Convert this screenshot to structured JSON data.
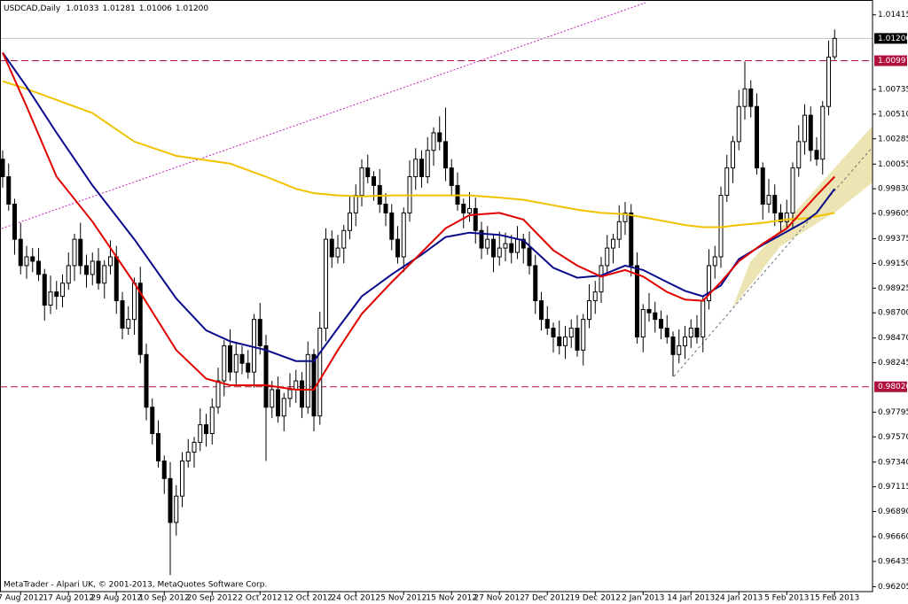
{
  "chart_data": {
    "type": "candlestick",
    "title": "USDCAD,Daily",
    "close_label": "1.01200",
    "watermark": "MetaTrader - Alpari UK, © 2001-2013, MetaQuotes Software Corp.",
    "categories": [
      null,
      null,
      null,
      "7 Aug 2012",
      null,
      null,
      null,
      null,
      null,
      null,
      null,
      "17 Aug 2012",
      null,
      null,
      null,
      null,
      null,
      null,
      null,
      "29 Aug 2012",
      null,
      null,
      null,
      null,
      null,
      null,
      null,
      "10 Sep 2012",
      null,
      null,
      null,
      null,
      null,
      null,
      null,
      "20 Sep 2012",
      null,
      null,
      null,
      null,
      null,
      null,
      null,
      "2 Oct 2012",
      null,
      null,
      null,
      null,
      null,
      null,
      null,
      "12 Oct 2012",
      null,
      null,
      null,
      null,
      null,
      null,
      null,
      "24 Oct 2012",
      null,
      null,
      null,
      null,
      null,
      null,
      null,
      "5 Nov 2012",
      null,
      null,
      null,
      null,
      null,
      null,
      null,
      "15 Nov 2012",
      null,
      null,
      null,
      null,
      null,
      null,
      null,
      "27 Nov 2012",
      null,
      null,
      null,
      null,
      null,
      null,
      null,
      "7 Dec 2012",
      null,
      null,
      null,
      null,
      null,
      null,
      null,
      "19 Dec 2012",
      null,
      null,
      null,
      null,
      null,
      null,
      null,
      "2 Jan 2013",
      null,
      null,
      null,
      null,
      null,
      null,
      null,
      "14 Jan 2013",
      null,
      null,
      null,
      null,
      null,
      null,
      null,
      "24 Jan 2013",
      null,
      null,
      null,
      null,
      null,
      null,
      null,
      "5 Feb 2013",
      null,
      null,
      null,
      null,
      null,
      null,
      null,
      "15 Feb 2013"
    ],
    "open": [
      1.001,
      0.9994,
      0.9969,
      0.9937,
      0.9913,
      0.9921,
      0.9917,
      0.9905,
      0.9877,
      0.9889,
      0.9885,
      0.9897,
      0.9913,
      0.9937,
      0.9913,
      0.9905,
      0.9917,
      0.9897,
      0.9913,
      0.9921,
      0.9881,
      0.9856,
      0.9864,
      0.9897,
      0.9832,
      0.9784,
      0.976,
      0.9735,
      0.9719,
      0.9679,
      0.9703,
      0.9735,
      0.9743,
      0.9752,
      0.9768,
      0.976,
      0.9784,
      0.9808,
      0.984,
      0.9816,
      0.9832,
      0.9824,
      0.9816,
      0.9864,
      0.984,
      0.9784,
      0.98,
      0.9776,
      0.9792,
      0.98,
      0.9808,
      0.9784,
      0.9832,
      0.9776,
      0.9856,
      0.9937,
      0.9921,
      0.9929,
      0.9945,
      0.9961,
      0.9977,
      1.0002,
      0.9994,
      0.9986,
      0.9969,
      0.9961,
      0.9937,
      0.9921,
      0.9961,
      0.9994,
      1.001,
      0.9994,
      1.0018,
      1.0034,
      1.0026,
      1.0002,
      0.9986,
      0.9969,
      0.9961,
      0.9965,
      0.9945,
      0.9929,
      0.9937,
      0.9921,
      0.9929,
      0.9933,
      0.9925,
      0.9937,
      0.9929,
      0.9913,
      0.9881,
      0.9864,
      0.9856,
      0.9848,
      0.984,
      0.9848,
      0.9856,
      0.9836,
      0.9864,
      0.9881,
      0.9889,
      0.9913,
      0.9929,
      0.9937,
      0.9953,
      0.9961,
      0.9913,
      0.9848,
      0.9873,
      0.987,
      0.9864,
      0.9856,
      0.9848,
      0.9832,
      0.984,
      0.9848,
      0.9856,
      0.9848,
      0.9881,
      0.9913,
      0.9921,
      0.9977,
      1.0002,
      1.0026,
      1.0058,
      1.0074,
      1.0058,
      1.0002,
      0.9969,
      0.9977,
      0.9961,
      0.9953,
      0.9961,
      1.0002,
      1.0026,
      1.005,
      1.0018,
      1.001,
      1.0058,
      1.01033
    ],
    "high": [
      1.0018,
      1.0006,
      0.9974,
      0.9952,
      0.9931,
      0.9929,
      0.9929,
      0.991,
      0.9904,
      0.9899,
      0.9905,
      0.9925,
      0.9942,
      0.9952,
      0.9923,
      0.9925,
      0.9929,
      0.9918,
      0.9936,
      0.9931,
      0.9889,
      0.9876,
      0.9902,
      0.9912,
      0.9842,
      0.9792,
      0.9772,
      0.974,
      0.9734,
      0.9713,
      0.9743,
      0.9755,
      0.9757,
      0.9783,
      0.9778,
      0.9792,
      0.982,
      0.9845,
      0.9855,
      0.9842,
      0.984,
      0.9836,
      0.9869,
      0.9879,
      0.985,
      0.9808,
      0.9812,
      0.9797,
      0.9815,
      0.9818,
      0.9816,
      0.9844,
      0.9837,
      0.9871,
      0.9947,
      0.9945,
      0.9941,
      0.995,
      0.9976,
      0.9987,
      1.001,
      1.0014,
      0.9999,
      1.0001,
      0.9979,
      0.9969,
      0.9949,
      0.9966,
      1.0009,
      1.002,
      1.0018,
      1.003,
      1.0039,
      1.0049,
      1.0057,
      1.001,
      0.9998,
      0.9974,
      0.998,
      0.9975,
      0.9953,
      0.9949,
      0.9942,
      0.9944,
      0.9943,
      0.9941,
      0.9949,
      0.9942,
      0.9944,
      0.9923,
      0.9889,
      0.9876,
      0.9861,
      0.9863,
      0.9858,
      0.9864,
      0.9868,
      0.9869,
      0.9896,
      0.9899,
      0.9921,
      0.9941,
      0.9942,
      0.9968,
      0.9971,
      0.9969,
      0.9925,
      0.9878,
      0.9888,
      0.988,
      0.9872,
      0.9868,
      0.9853,
      0.9855,
      0.9858,
      0.9864,
      0.9868,
      0.9886,
      0.9928,
      0.9931,
      0.9985,
      1.0014,
      1.0031,
      1.0073,
      1.0099,
      1.0082,
      1.007,
      1.0007,
      0.9992,
      0.9987,
      0.9969,
      0.9973,
      1.0007,
      1.0041,
      1.006,
      1.0058,
      1.003,
      1.0063,
      1.0118,
      1.01281
    ],
    "low": [
      0.9984,
      0.9963,
      0.9923,
      0.9905,
      0.9901,
      0.9907,
      0.9899,
      0.9863,
      0.9869,
      0.9873,
      0.9875,
      0.9891,
      0.9899,
      0.9905,
      0.9893,
      0.9895,
      0.9891,
      0.9883,
      0.9905,
      0.9869,
      0.9846,
      0.985,
      0.985,
      0.9824,
      0.9772,
      0.975,
      0.9729,
      0.9705,
      0.9631,
      0.9667,
      0.9693,
      0.9729,
      0.9729,
      0.9744,
      0.9748,
      0.975,
      0.9778,
      0.9794,
      0.9808,
      0.9804,
      0.9814,
      0.981,
      0.9802,
      0.9832,
      0.9735,
      0.9774,
      0.977,
      0.9762,
      0.9784,
      0.9788,
      0.9774,
      0.9778,
      0.9762,
      0.9768,
      0.9844,
      0.9911,
      0.9915,
      0.9915,
      0.9937,
      0.9949,
      0.9967,
      0.9988,
      0.9972,
      0.9961,
      0.9949,
      0.9927,
      0.9915,
      0.9907,
      0.9953,
      0.9982,
      0.9984,
      0.9988,
      1.0004,
      1.0018,
      0.999,
      0.9976,
      0.9963,
      0.9947,
      0.9953,
      0.9933,
      0.9919,
      0.9923,
      0.9907,
      0.9913,
      0.9917,
      0.9915,
      0.9919,
      0.9915,
      0.9905,
      0.9869,
      0.9854,
      0.985,
      0.9834,
      0.9832,
      0.9828,
      0.9838,
      0.983,
      0.9822,
      0.9856,
      0.9869,
      0.9879,
      0.9907,
      0.9915,
      0.9929,
      0.9941,
      0.9903,
      0.9842,
      0.9834,
      0.9862,
      0.9852,
      0.9846,
      0.9842,
      0.9812,
      0.9824,
      0.9828,
      0.9838,
      0.9842,
      0.9834,
      0.9873,
      0.9901,
      0.9911,
      0.9971,
      0.9988,
      1.0018,
      1.0046,
      1.0048,
      0.9996,
      0.9955,
      0.9961,
      0.9949,
      0.9943,
      0.9947,
      0.9947,
      0.9994,
      1.0014,
      1.0008,
      1.0004,
      0.9996,
      1.005,
      1.01006
    ],
    "close": [
      0.9994,
      0.9969,
      0.9937,
      0.9913,
      0.9921,
      0.9917,
      0.9905,
      0.9877,
      0.9889,
      0.9885,
      0.9897,
      0.9913,
      0.9937,
      0.9913,
      0.9905,
      0.9917,
      0.9897,
      0.9913,
      0.9921,
      0.9881,
      0.9856,
      0.9864,
      0.9897,
      0.9832,
      0.9784,
      0.976,
      0.9735,
      0.9719,
      0.9679,
      0.9703,
      0.9735,
      0.9743,
      0.9752,
      0.9768,
      0.976,
      0.9784,
      0.9808,
      0.984,
      0.9816,
      0.9832,
      0.9824,
      0.9816,
      0.9864,
      0.984,
      0.9784,
      0.98,
      0.9776,
      0.9792,
      0.98,
      0.9808,
      0.9784,
      0.9832,
      0.9776,
      0.9856,
      0.9937,
      0.9921,
      0.9929,
      0.9945,
      0.9961,
      0.9977,
      1.0002,
      0.9994,
      0.9986,
      0.9969,
      0.9961,
      0.9937,
      0.9921,
      0.9961,
      0.9994,
      1.001,
      0.9994,
      1.0018,
      1.0034,
      1.0026,
      1.0002,
      0.9986,
      0.9969,
      0.9961,
      0.9965,
      0.9945,
      0.9929,
      0.9937,
      0.9921,
      0.9929,
      0.9933,
      0.9925,
      0.9937,
      0.9929,
      0.9913,
      0.9881,
      0.9864,
      0.9856,
      0.9848,
      0.984,
      0.9848,
      0.9856,
      0.9836,
      0.9864,
      0.9881,
      0.9889,
      0.9913,
      0.9929,
      0.9937,
      0.9953,
      0.9961,
      0.9913,
      0.9848,
      0.9873,
      0.987,
      0.9864,
      0.9856,
      0.9848,
      0.9832,
      0.984,
      0.9848,
      0.9856,
      0.9848,
      0.9881,
      0.9913,
      0.9921,
      0.9977,
      1.0002,
      1.0026,
      1.0058,
      1.0074,
      1.0058,
      1.0002,
      0.9969,
      0.9977,
      0.9961,
      0.9953,
      0.9961,
      1.0002,
      1.0026,
      1.005,
      1.0018,
      1.001,
      1.0058,
      1.0103,
      1.012
    ],
    "overlays": [
      {
        "color": "#f2c200",
        "x": [
          0,
          4,
          9,
          15,
          22,
          29,
          34,
          38,
          44,
          49,
          52,
          56,
          60,
          65,
          70,
          74,
          78,
          83,
          87,
          92,
          96,
          100,
          104,
          107,
          111,
          114,
          117,
          120,
          123,
          127,
          131,
          134,
          136,
          139
        ],
        "values": [
          1.0081,
          1.0074,
          1.0064,
          1.0052,
          1.0026,
          1.0013,
          1.0009,
          1.0006,
          0.9994,
          0.9983,
          0.9979,
          0.9977,
          0.9976,
          0.9977,
          0.9977,
          0.9977,
          0.9977,
          0.9975,
          0.9973,
          0.9968,
          0.9964,
          0.9961,
          0.996,
          0.9957,
          0.9953,
          0.995,
          0.9948,
          0.9948,
          0.995,
          0.9952,
          0.9955,
          0.9956,
          0.9958,
          0.9961
        ]
      },
      {
        "color": "#0a0a8c",
        "x": [
          0,
          4,
          9,
          15,
          22,
          29,
          34,
          38,
          44,
          49,
          52,
          56,
          60,
          65,
          70,
          74,
          78,
          83,
          87,
          92,
          96,
          100,
          104,
          107,
          111,
          114,
          117,
          120,
          123,
          127,
          131,
          134,
          136,
          139
        ],
        "values": [
          1.0107,
          1.0076,
          1.0034,
          0.9986,
          0.9937,
          0.9883,
          0.9854,
          0.9844,
          0.9836,
          0.9826,
          0.9826,
          0.9856,
          0.9885,
          0.9905,
          0.9923,
          0.9939,
          0.9943,
          0.9941,
          0.9936,
          0.9911,
          0.9902,
          0.9904,
          0.9913,
          0.9909,
          0.9898,
          0.989,
          0.9885,
          0.9895,
          0.9919,
          0.9932,
          0.9944,
          0.9953,
          0.9961,
          0.9983
        ]
      },
      {
        "color": "#e00000",
        "x": [
          0,
          4,
          9,
          15,
          22,
          29,
          34,
          38,
          44,
          49,
          52,
          56,
          60,
          65,
          70,
          74,
          78,
          83,
          87,
          92,
          96,
          100,
          104,
          107,
          111,
          114,
          117,
          120,
          123,
          127,
          131,
          134,
          136,
          139
        ],
        "values": [
          1.0107,
          1.0058,
          0.9994,
          0.9953,
          0.9897,
          0.9836,
          0.981,
          0.9804,
          0.9804,
          0.98,
          0.98,
          0.9836,
          0.9869,
          0.9898,
          0.9925,
          0.9947,
          0.9959,
          0.9961,
          0.9955,
          0.9927,
          0.9913,
          0.9903,
          0.9909,
          0.9903,
          0.9889,
          0.9882,
          0.9881,
          0.9898,
          0.9917,
          0.9933,
          0.9947,
          0.9965,
          0.9977,
          0.9994
        ]
      }
    ],
    "hlines": [
      {
        "value": 1.00997,
        "color": "#b0103c"
      },
      {
        "value": 0.98026,
        "color": "#b0103c"
      }
    ],
    "ylim": [
      0.9616,
      1.0155
    ],
    "yticks": [
      1.01415,
      1.00735,
      {
        "value": 1.0051,
        "label": "1.00510"
      },
      1.00285,
      1.00055,
      {
        "value": 0.9983,
        "label": "0.99830"
      },
      0.99605,
      0.99375,
      {
        "value": 0.9915,
        "label": "0.99150"
      },
      0.98925,
      {
        "value": 0.987,
        "label": "0.98700"
      },
      {
        "value": 0.9847,
        "label": "0.98470"
      },
      0.98245,
      0.97795,
      {
        "value": 0.9757,
        "label": "0.97570"
      },
      {
        "value": 0.9734,
        "label": "0.97340"
      },
      0.97115,
      {
        "value": 0.9689,
        "label": "0.96890"
      },
      {
        "value": 0.9666,
        "label": "0.96660"
      },
      0.96435,
      0.96205
    ]
  }
}
